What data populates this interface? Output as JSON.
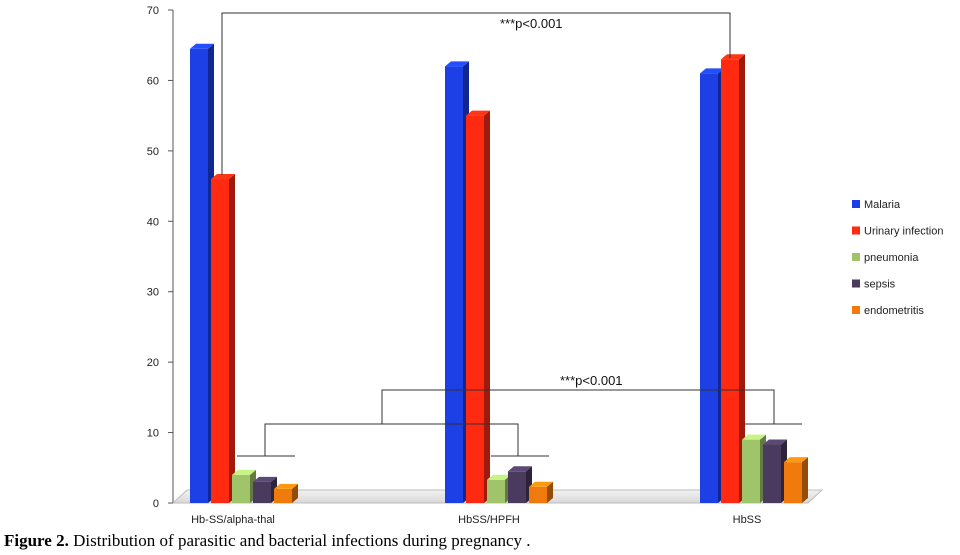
{
  "chart_data": {
    "type": "bar",
    "categories": [
      "Hb-SS/alpha-thal",
      "HbSS/HPFH",
      "HbSS"
    ],
    "series": [
      {
        "name": "Malaria",
        "values": [
          64.5,
          62,
          61
        ],
        "color": "#1c3fe6"
      },
      {
        "name": "Urinary infection",
        "values": [
          46,
          55,
          63
        ],
        "color": "#ff2a10"
      },
      {
        "name": "pneumonia",
        "values": [
          4,
          3.3,
          9
        ],
        "color": "#9fc46a"
      },
      {
        "name": "sepsis",
        "values": [
          3,
          4.5,
          8.3
        ],
        "color": "#4a3a5e"
      },
      {
        "name": "endometritis",
        "values": [
          2,
          2.3,
          5.8
        ],
        "color": "#f07a0c"
      }
    ],
    "yticks": [
      0,
      10,
      20,
      30,
      40,
      50,
      60,
      70
    ],
    "ylim": [
      0,
      70
    ],
    "legend_position": "right",
    "annotations": [
      {
        "text": "***p<0.001",
        "compares": "Hb-SS/alpha-thal vs HbSS (Urinary infection)"
      },
      {
        "text": "***p<0.001",
        "compares": "Hb-SS/alpha-thal and HbSS/HPFH vs HbSS (pneumonia, sepsis, endometritis)"
      }
    ]
  },
  "caption": {
    "label": "Figure 2.",
    "text": " Distribution of parasitic and bacterial infections during pregnancy ."
  }
}
